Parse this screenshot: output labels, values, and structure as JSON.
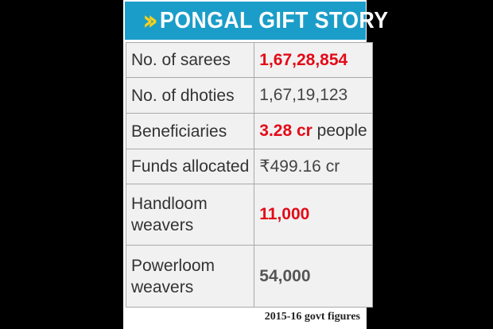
{
  "header": {
    "title": "PONGAL GIFT STORY",
    "icon": "double-chevron-right-icon",
    "bg_color": "#1b9dc9",
    "icon_color": "#f5d11b"
  },
  "rows": [
    {
      "label": "No. of sarees",
      "value": "1,67,28,854",
      "highlight": true
    },
    {
      "label": "No. of dhoties",
      "value": "1,67,19,123",
      "highlight": false
    },
    {
      "label": "Beneficiaries",
      "value": "3.28 cr",
      "suffix": "people",
      "highlight": true
    },
    {
      "label": "Funds allocated",
      "value": "₹499.16 cr",
      "highlight": false
    },
    {
      "label_line1": "Handloom",
      "label_line2": "weavers",
      "value": "11,000",
      "highlight": true
    },
    {
      "label_line1": "Powerloom",
      "label_line2": "weavers",
      "value": "54,000",
      "highlight": false
    }
  ],
  "footer": {
    "note": "2015-16 govt figures"
  },
  "colors": {
    "highlight": "#e30b17"
  }
}
